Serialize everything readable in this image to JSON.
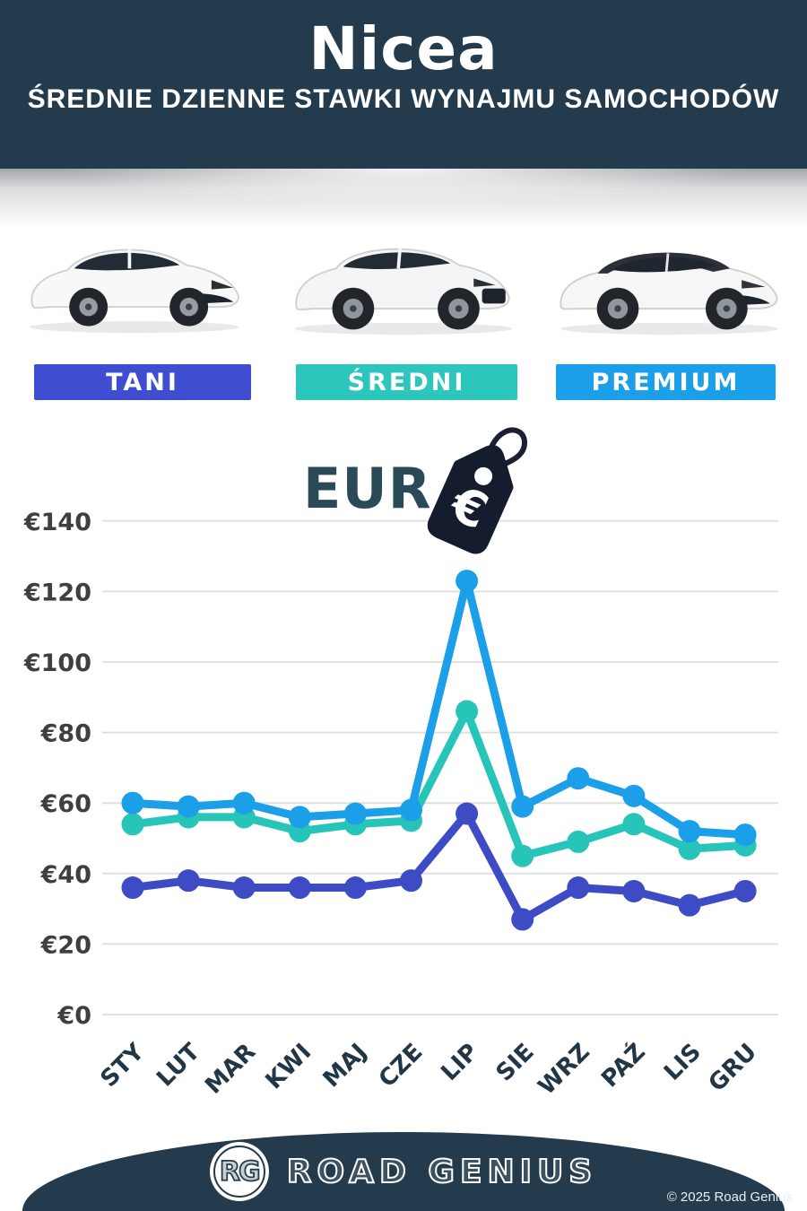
{
  "header": {
    "title": "Nicea",
    "subtitle": "ŚREDNIE DZIENNE STAWKI WYNAJMU SAMOCHODÓW"
  },
  "tiers": [
    {
      "label": "TANI",
      "color": "#3f4ed0"
    },
    {
      "label": "ŚREDNI",
      "color": "#2cc6bd"
    },
    {
      "label": "PREMIUM",
      "color": "#1b9fe8"
    }
  ],
  "currency": {
    "label": "EUR",
    "symbol": "€"
  },
  "chart_data": {
    "type": "line",
    "categories": [
      "STY",
      "LUT",
      "MAR",
      "KWI",
      "MAJ",
      "CZE",
      "LIP",
      "SIE",
      "WRZ",
      "PAŹ",
      "LIS",
      "GRU"
    ],
    "series": [
      {
        "name": "PREMIUM",
        "color": "#1b9fe8",
        "values": [
          60,
          59,
          60,
          56,
          57,
          58,
          123,
          59,
          67,
          62,
          52,
          51
        ]
      },
      {
        "name": "ŚREDNI",
        "color": "#27c4b9",
        "values": [
          54,
          56,
          56,
          52,
          54,
          55,
          86,
          45,
          49,
          54,
          47,
          48
        ]
      },
      {
        "name": "TANI",
        "color": "#3d4cc5",
        "values": [
          36,
          38,
          36,
          36,
          36,
          38,
          57,
          27,
          36,
          35,
          31,
          35
        ]
      }
    ],
    "title": "",
    "xlabel": "",
    "ylabel": "EUR (€)",
    "ylim": [
      0,
      140
    ],
    "ytick_step": 20,
    "ytick_prefix": "€",
    "ytick_labels": [
      "€0",
      "€20",
      "€40",
      "€60",
      "€80",
      "€100",
      "€120",
      "€140"
    ],
    "grid": true,
    "legend_position": "none"
  },
  "footer": {
    "logo_initials": "RG",
    "brand": "ROAD GENIUS",
    "copyright": "© 2025 Road Genius"
  }
}
